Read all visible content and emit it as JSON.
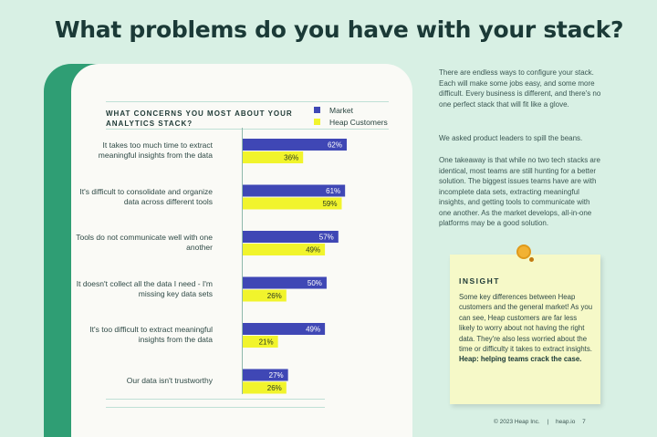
{
  "page": {
    "title": "What problems do you have with your stack?"
  },
  "chart_data": {
    "type": "bar",
    "orientation": "horizontal",
    "title": "WHAT CONCERNS YOU MOST ABOUT YOUR ANALYTICS STACK?",
    "categories": [
      "It takes too much time to extract meaningful insights from the data",
      "It's difficult to consolidate and organize data across different tools",
      "Tools do not communicate well with one another",
      "It doesn't collect all the data I need - I'm missing key data sets",
      "It's too difficult to extract meaningful insights from the data",
      "Our data isn't trustworthy"
    ],
    "series": [
      {
        "name": "Market",
        "color": "#3f47b5",
        "values": [
          62,
          61,
          57,
          50,
          49,
          27
        ],
        "labels": [
          "62%",
          "61%",
          "57%",
          "50%",
          "49%",
          "27%"
        ]
      },
      {
        "name": "Heap Customers",
        "color": "#f1f42c",
        "values": [
          36,
          59,
          49,
          26,
          21,
          26
        ],
        "labels": [
          "36%",
          "59%",
          "49%",
          "26%",
          "21%",
          "26%"
        ]
      }
    ],
    "xlim": [
      0,
      100
    ],
    "legend": "top-right",
    "grid": false
  },
  "sidebar": {
    "paragraphs": [
      "There are endless ways to configure your stack. Each will make some jobs easy, and some more difficult. Every business is different, and there's no one perfect stack that will fit like a glove.",
      "We asked product leaders to spill the beans.",
      "One takeaway is that while no two tech stacks are identical, most teams are still hunting for a better solution. The biggest issues teams have are with incomplete data sets, extracting meaningful insights, and getting tools to communicate with one another. As the market develops, all-in-one platforms may be a good solution."
    ]
  },
  "insight": {
    "title": "INSIGHT",
    "body": "Some key differences between Heap customers and the general market! As you can see, Heap customers are far less likely to worry about not having the right data. They're also less worried about the time or difficulty it takes to extract insights.",
    "highlight": "Heap: helping teams crack the case."
  },
  "footer": {
    "copyright": "© 2023 Heap Inc.",
    "separator": "|",
    "site": "heap.io",
    "page_number": "7"
  }
}
